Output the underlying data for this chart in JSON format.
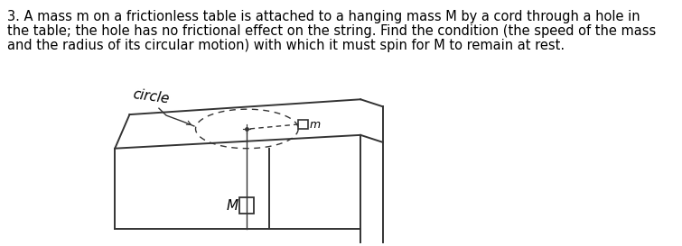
{
  "background_color": "#ffffff",
  "problem_text_line1": "3. A mass m on a frictionless table is attached to a hanging mass M by a cord through a hole in",
  "problem_text_line2": "the table; the hole has no frictional effect on the string. Find the condition (the speed of the mass",
  "problem_text_line3": "and the radius of its circular motion) with which it must spin for M to remain at rest.",
  "font_size_text": 10.5,
  "fig_width": 7.55,
  "fig_height": 2.73,
  "dpi": 100,
  "col": "#333333",
  "lw": 1.4
}
